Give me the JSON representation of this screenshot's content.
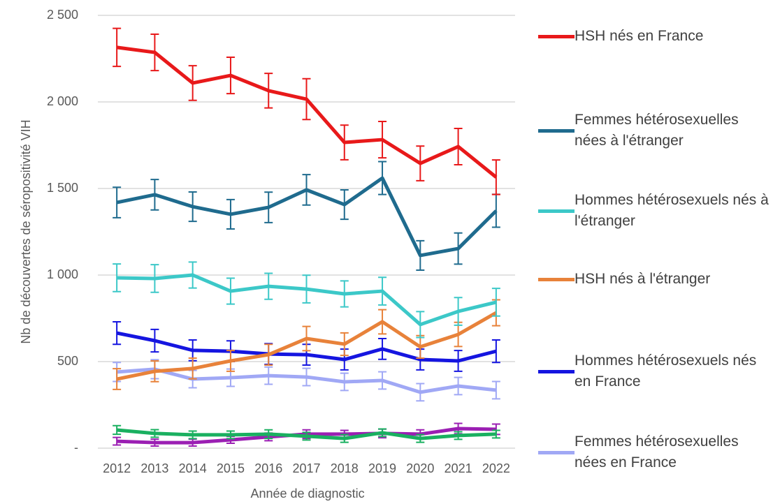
{
  "chart_data": {
    "type": "line",
    "y_label": "Nb de découvertes de séropositivité VIH",
    "x_label": "Année de diagnostic",
    "categories": [
      "2012",
      "2013",
      "2014",
      "2015",
      "2016",
      "2017",
      "2018",
      "2019",
      "2020",
      "2021",
      "2022"
    ],
    "ylim": [
      0,
      2500
    ],
    "yticks": [
      {
        "value": 0,
        "label": "-"
      },
      500,
      {
        "value": 1000,
        "label": "1 000"
      },
      {
        "value": 1500,
        "label": "1 500"
      },
      {
        "value": 2000,
        "label": "2 000"
      },
      {
        "value": 2500,
        "label": "2 500"
      }
    ],
    "grid": true,
    "legend": "right",
    "series": [
      {
        "name": "HSH nés en France",
        "color": "#e8191a",
        "values": [
          2315,
          2286,
          2109,
          2153,
          2065,
          2016,
          1766,
          1782,
          1645,
          1742,
          1565
        ],
        "errors": [
          110,
          105,
          100,
          105,
          100,
          118,
          100,
          105,
          100,
          105,
          100
        ]
      },
      {
        "name": "Femmes hétérosexuelles nées à l'étranger",
        "color": "#1f6b8e",
        "values": [
          1419,
          1464,
          1395,
          1351,
          1391,
          1492,
          1407,
          1560,
          1113,
          1153,
          1371
        ],
        "errors": [
          88,
          88,
          85,
          85,
          88,
          88,
          85,
          95,
          85,
          90,
          95
        ]
      },
      {
        "name": "Hommes hétérosexuels nés à l'étranger",
        "color": "#3cc8c8",
        "values": [
          984,
          980,
          1000,
          907,
          935,
          919,
          891,
          907,
          714,
          790,
          843
        ],
        "errors": [
          80,
          80,
          75,
          75,
          75,
          80,
          75,
          80,
          75,
          80,
          80
        ]
      },
      {
        "name": "HSH nés à l'étranger",
        "color": "#e8823a",
        "values": [
          399,
          444,
          460,
          504,
          540,
          633,
          601,
          730,
          585,
          657,
          782
        ],
        "errors": [
          60,
          60,
          60,
          60,
          60,
          70,
          65,
          70,
          65,
          70,
          75
        ]
      },
      {
        "name": "Hommes hétérosexuels nés en France",
        "color": "#1515e0",
        "values": [
          665,
          621,
          565,
          560,
          544,
          540,
          512,
          573,
          512,
          504,
          560
        ],
        "errors": [
          65,
          65,
          60,
          60,
          60,
          60,
          60,
          60,
          60,
          60,
          65
        ]
      },
      {
        "name": "Femmes hétérosexuelles nées en France",
        "color": "#a0a8f5",
        "values": [
          440,
          456,
          399,
          407,
          419,
          411,
          383,
          391,
          323,
          359,
          335
        ],
        "errors": [
          55,
          55,
          50,
          50,
          50,
          50,
          50,
          50,
          50,
          50,
          50
        ]
      },
      {
        "color": "#1ab060",
        "values": [
          105,
          85,
          77,
          77,
          81,
          69,
          56,
          89,
          56,
          73,
          81
        ],
        "errors": [
          25,
          22,
          22,
          22,
          25,
          22,
          22,
          22,
          22,
          22,
          22
        ]
      },
      {
        "color": "#9b1fb3",
        "values": [
          40,
          32,
          32,
          48,
          65,
          81,
          81,
          85,
          81,
          113,
          109
        ],
        "errors": [
          22,
          20,
          20,
          20,
          22,
          25,
          22,
          25,
          25,
          30,
          30
        ]
      }
    ]
  }
}
